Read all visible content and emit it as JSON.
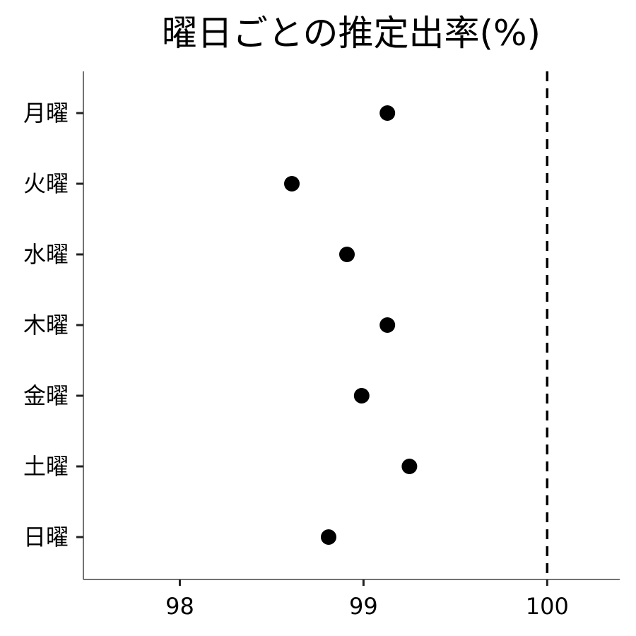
{
  "chart_data": {
    "type": "scatter",
    "title": "曜日ごとの推定出率(%)",
    "xlabel": "",
    "ylabel": "",
    "categories": [
      "月曜",
      "火曜",
      "水曜",
      "木曜",
      "金曜",
      "土曜",
      "日曜"
    ],
    "values": [
      99.13,
      98.61,
      98.91,
      99.13,
      98.99,
      99.25,
      98.81
    ],
    "xlim": [
      97.475,
      100.395
    ],
    "xticks": [
      98,
      99,
      100
    ],
    "xtick_labels": [
      "98",
      "99",
      "100"
    ],
    "reference_line": {
      "x": 100,
      "style": "dashed"
    },
    "grid": false,
    "point_color": "#000000"
  }
}
